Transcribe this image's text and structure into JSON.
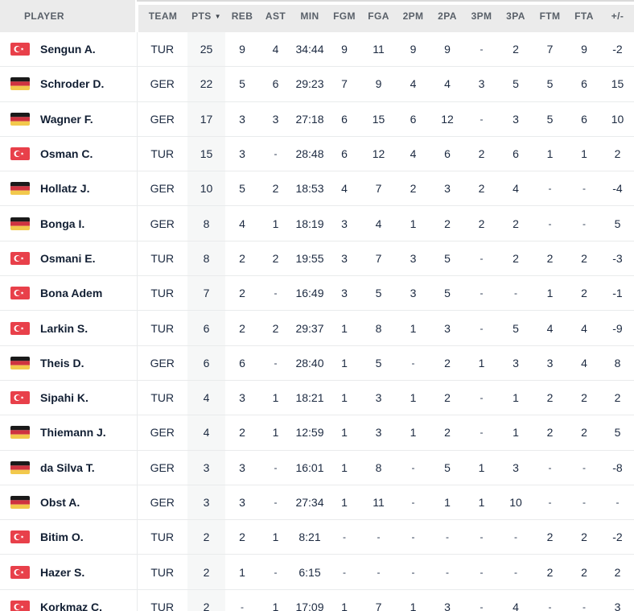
{
  "table": {
    "sorted_column": "pts",
    "sort_direction": "desc",
    "columns": [
      {
        "key": "player",
        "label": "PLAYER"
      },
      {
        "key": "team",
        "label": "TEAM"
      },
      {
        "key": "pts",
        "label": "PTS"
      },
      {
        "key": "reb",
        "label": "REB"
      },
      {
        "key": "ast",
        "label": "AST"
      },
      {
        "key": "min",
        "label": "MIN"
      },
      {
        "key": "fgm",
        "label": "FGM"
      },
      {
        "key": "fga",
        "label": "FGA"
      },
      {
        "key": "2pm",
        "label": "2PM"
      },
      {
        "key": "2pa",
        "label": "2PA"
      },
      {
        "key": "3pm",
        "label": "3PM"
      },
      {
        "key": "3pa",
        "label": "3PA"
      },
      {
        "key": "ftm",
        "label": "FTM"
      },
      {
        "key": "fta",
        "label": "FTA"
      },
      {
        "key": "plus_minus",
        "label": "+/-"
      }
    ],
    "rows": [
      {
        "flag": "tur",
        "player": "Sengun A.",
        "team": "TUR",
        "pts": "25",
        "reb": "9",
        "ast": "4",
        "min": "34:44",
        "fgm": "9",
        "fga": "11",
        "2pm": "9",
        "2pa": "9",
        "3pm": "-",
        "3pa": "2",
        "ftm": "7",
        "fta": "9",
        "plus_minus": "-2"
      },
      {
        "flag": "ger",
        "player": "Schroder D.",
        "team": "GER",
        "pts": "22",
        "reb": "5",
        "ast": "6",
        "min": "29:23",
        "fgm": "7",
        "fga": "9",
        "2pm": "4",
        "2pa": "4",
        "3pm": "3",
        "3pa": "5",
        "ftm": "5",
        "fta": "6",
        "plus_minus": "15"
      },
      {
        "flag": "ger",
        "player": "Wagner F.",
        "team": "GER",
        "pts": "17",
        "reb": "3",
        "ast": "3",
        "min": "27:18",
        "fgm": "6",
        "fga": "15",
        "2pm": "6",
        "2pa": "12",
        "3pm": "-",
        "3pa": "3",
        "ftm": "5",
        "fta": "6",
        "plus_minus": "10"
      },
      {
        "flag": "tur",
        "player": "Osman C.",
        "team": "TUR",
        "pts": "15",
        "reb": "3",
        "ast": "-",
        "min": "28:48",
        "fgm": "6",
        "fga": "12",
        "2pm": "4",
        "2pa": "6",
        "3pm": "2",
        "3pa": "6",
        "ftm": "1",
        "fta": "1",
        "plus_minus": "2"
      },
      {
        "flag": "ger",
        "player": "Hollatz J.",
        "team": "GER",
        "pts": "10",
        "reb": "5",
        "ast": "2",
        "min": "18:53",
        "fgm": "4",
        "fga": "7",
        "2pm": "2",
        "2pa": "3",
        "3pm": "2",
        "3pa": "4",
        "ftm": "-",
        "fta": "-",
        "plus_minus": "-4"
      },
      {
        "flag": "ger",
        "player": "Bonga I.",
        "team": "GER",
        "pts": "8",
        "reb": "4",
        "ast": "1",
        "min": "18:19",
        "fgm": "3",
        "fga": "4",
        "2pm": "1",
        "2pa": "2",
        "3pm": "2",
        "3pa": "2",
        "ftm": "-",
        "fta": "-",
        "plus_minus": "5"
      },
      {
        "flag": "tur",
        "player": "Osmani E.",
        "team": "TUR",
        "pts": "8",
        "reb": "2",
        "ast": "2",
        "min": "19:55",
        "fgm": "3",
        "fga": "7",
        "2pm": "3",
        "2pa": "5",
        "3pm": "-",
        "3pa": "2",
        "ftm": "2",
        "fta": "2",
        "plus_minus": "-3"
      },
      {
        "flag": "tur",
        "player": "Bona Adem",
        "team": "TUR",
        "pts": "7",
        "reb": "2",
        "ast": "-",
        "min": "16:49",
        "fgm": "3",
        "fga": "5",
        "2pm": "3",
        "2pa": "5",
        "3pm": "-",
        "3pa": "-",
        "ftm": "1",
        "fta": "2",
        "plus_minus": "-1"
      },
      {
        "flag": "tur",
        "player": "Larkin S.",
        "team": "TUR",
        "pts": "6",
        "reb": "2",
        "ast": "2",
        "min": "29:37",
        "fgm": "1",
        "fga": "8",
        "2pm": "1",
        "2pa": "3",
        "3pm": "-",
        "3pa": "5",
        "ftm": "4",
        "fta": "4",
        "plus_minus": "-9"
      },
      {
        "flag": "ger",
        "player": "Theis D.",
        "team": "GER",
        "pts": "6",
        "reb": "6",
        "ast": "-",
        "min": "28:40",
        "fgm": "1",
        "fga": "5",
        "2pm": "-",
        "2pa": "2",
        "3pm": "1",
        "3pa": "3",
        "ftm": "3",
        "fta": "4",
        "plus_minus": "8"
      },
      {
        "flag": "tur",
        "player": "Sipahi K.",
        "team": "TUR",
        "pts": "4",
        "reb": "3",
        "ast": "1",
        "min": "18:21",
        "fgm": "1",
        "fga": "3",
        "2pm": "1",
        "2pa": "2",
        "3pm": "-",
        "3pa": "1",
        "ftm": "2",
        "fta": "2",
        "plus_minus": "2"
      },
      {
        "flag": "ger",
        "player": "Thiemann J.",
        "team": "GER",
        "pts": "4",
        "reb": "2",
        "ast": "1",
        "min": "12:59",
        "fgm": "1",
        "fga": "3",
        "2pm": "1",
        "2pa": "2",
        "3pm": "-",
        "3pa": "1",
        "ftm": "2",
        "fta": "2",
        "plus_minus": "5"
      },
      {
        "flag": "ger",
        "player": "da Silva T.",
        "team": "GER",
        "pts": "3",
        "reb": "3",
        "ast": "-",
        "min": "16:01",
        "fgm": "1",
        "fga": "8",
        "2pm": "-",
        "2pa": "5",
        "3pm": "1",
        "3pa": "3",
        "ftm": "-",
        "fta": "-",
        "plus_minus": "-8"
      },
      {
        "flag": "ger",
        "player": "Obst A.",
        "team": "GER",
        "pts": "3",
        "reb": "3",
        "ast": "-",
        "min": "27:34",
        "fgm": "1",
        "fga": "11",
        "2pm": "-",
        "2pa": "1",
        "3pm": "1",
        "3pa": "10",
        "ftm": "-",
        "fta": "-",
        "plus_minus": "-"
      },
      {
        "flag": "tur",
        "player": "Bitim O.",
        "team": "TUR",
        "pts": "2",
        "reb": "2",
        "ast": "1",
        "min": "8:21",
        "fgm": "-",
        "fga": "-",
        "2pm": "-",
        "2pa": "-",
        "3pm": "-",
        "3pa": "-",
        "ftm": "2",
        "fta": "2",
        "plus_minus": "-2"
      },
      {
        "flag": "tur",
        "player": "Hazer S.",
        "team": "TUR",
        "pts": "2",
        "reb": "1",
        "ast": "-",
        "min": "6:15",
        "fgm": "-",
        "fga": "-",
        "2pm": "-",
        "2pa": "-",
        "3pm": "-",
        "3pa": "-",
        "ftm": "2",
        "fta": "2",
        "plus_minus": "2"
      },
      {
        "flag": "tur",
        "player": "Korkmaz C.",
        "team": "TUR",
        "pts": "2",
        "reb": "-",
        "ast": "1",
        "min": "17:09",
        "fgm": "1",
        "fga": "7",
        "2pm": "1",
        "2pa": "3",
        "3pm": "-",
        "3pa": "4",
        "ftm": "-",
        "fta": "-",
        "plus_minus": "3"
      }
    ]
  },
  "icons": {
    "sort_desc": "▼"
  },
  "colors": {
    "header_bg": "#ebebeb",
    "sorted_column_bg": "#f6f7f7",
    "row_text": "#1b2940",
    "turkey_flag_red": "#e8404a",
    "germany_flag_black": "#1a1a1a",
    "germany_flag_red": "#cf3340",
    "germany_flag_gold": "#f2c94c"
  }
}
